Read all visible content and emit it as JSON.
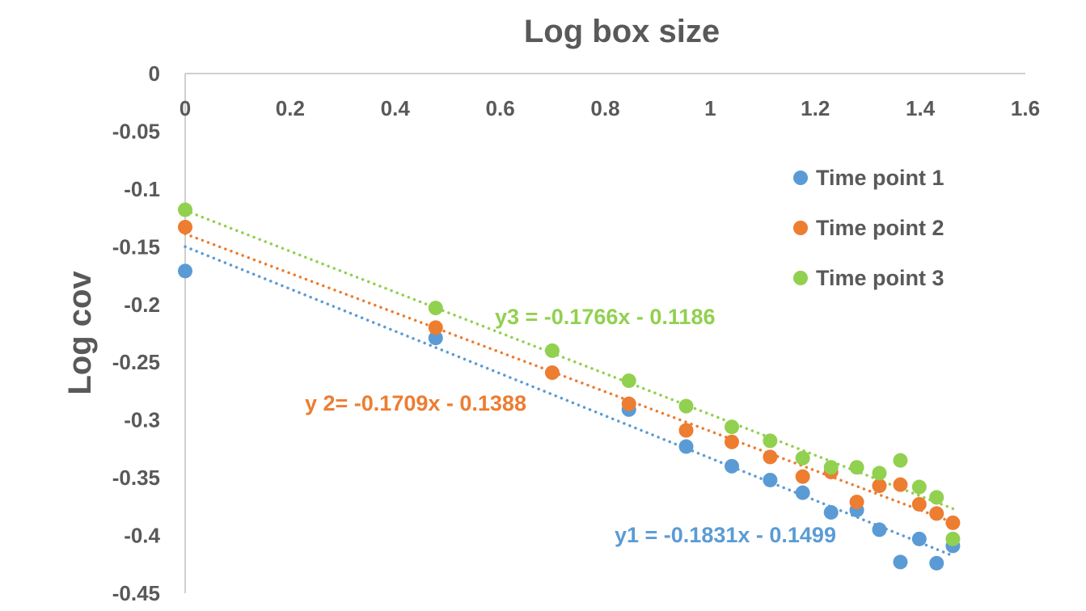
{
  "chart_data": {
    "type": "scatter",
    "title": "Log box size",
    "xlabel": "",
    "ylabel": "Log cov",
    "xlim": [
      0,
      1.6
    ],
    "ylim": [
      -0.45,
      0
    ],
    "x_axis_position": "top",
    "x_ticks": [
      "0",
      "0.2",
      "0.4",
      "0.6",
      "0.8",
      "1",
      "1.2",
      "1.4",
      "1.6"
    ],
    "y_ticks": [
      "0",
      "-0.05",
      "-0.1",
      "-0.15",
      "-0.2",
      "-0.25",
      "-0.3",
      "-0.35",
      "-0.4",
      "-0.45"
    ],
    "grid": false,
    "legend_position": "right",
    "series": [
      {
        "name": "Time point 1",
        "color": "#5B9BD5",
        "x": [
          0,
          0.477,
          0.845,
          0.954,
          1.041,
          1.114,
          1.176,
          1.23,
          1.279,
          1.322,
          1.362,
          1.398,
          1.431,
          1.462
        ],
        "y": [
          -0.171,
          -0.229,
          -0.291,
          -0.323,
          -0.34,
          -0.352,
          -0.363,
          -0.38,
          -0.378,
          -0.395,
          -0.423,
          -0.403,
          -0.424,
          -0.409
        ],
        "trendline": {
          "slope": -0.1831,
          "intercept": -0.1499,
          "x_range": [
            0,
            1.462
          ],
          "label": "y1 = -0.1831x - 0.1499"
        }
      },
      {
        "name": "Time point 2",
        "color": "#ED7D31",
        "x": [
          0,
          0.477,
          0.699,
          0.845,
          0.954,
          1.041,
          1.114,
          1.176,
          1.23,
          1.279,
          1.322,
          1.362,
          1.398,
          1.431,
          1.462
        ],
        "y": [
          -0.133,
          -0.22,
          -0.259,
          -0.286,
          -0.309,
          -0.319,
          -0.332,
          -0.349,
          -0.345,
          -0.371,
          -0.357,
          -0.356,
          -0.373,
          -0.381,
          -0.389
        ],
        "trendline": {
          "slope": -0.1709,
          "intercept": -0.1388,
          "x_range": [
            0,
            1.462
          ],
          "label": "y 2= -0.1709x - 0.1388"
        }
      },
      {
        "name": "Time point 3",
        "color": "#92D050",
        "x": [
          0,
          0.477,
          0.699,
          0.845,
          0.954,
          1.041,
          1.114,
          1.176,
          1.23,
          1.279,
          1.322,
          1.362,
          1.398,
          1.431,
          1.462
        ],
        "y": [
          -0.118,
          -0.203,
          -0.24,
          -0.266,
          -0.288,
          -0.306,
          -0.318,
          -0.333,
          -0.341,
          -0.341,
          -0.346,
          -0.335,
          -0.358,
          -0.367,
          -0.403
        ],
        "trendline": {
          "slope": -0.1766,
          "intercept": -0.1186,
          "x_range": [
            0,
            1.462
          ],
          "label": "y3 = -0.1766x - 0.1186"
        }
      }
    ]
  }
}
